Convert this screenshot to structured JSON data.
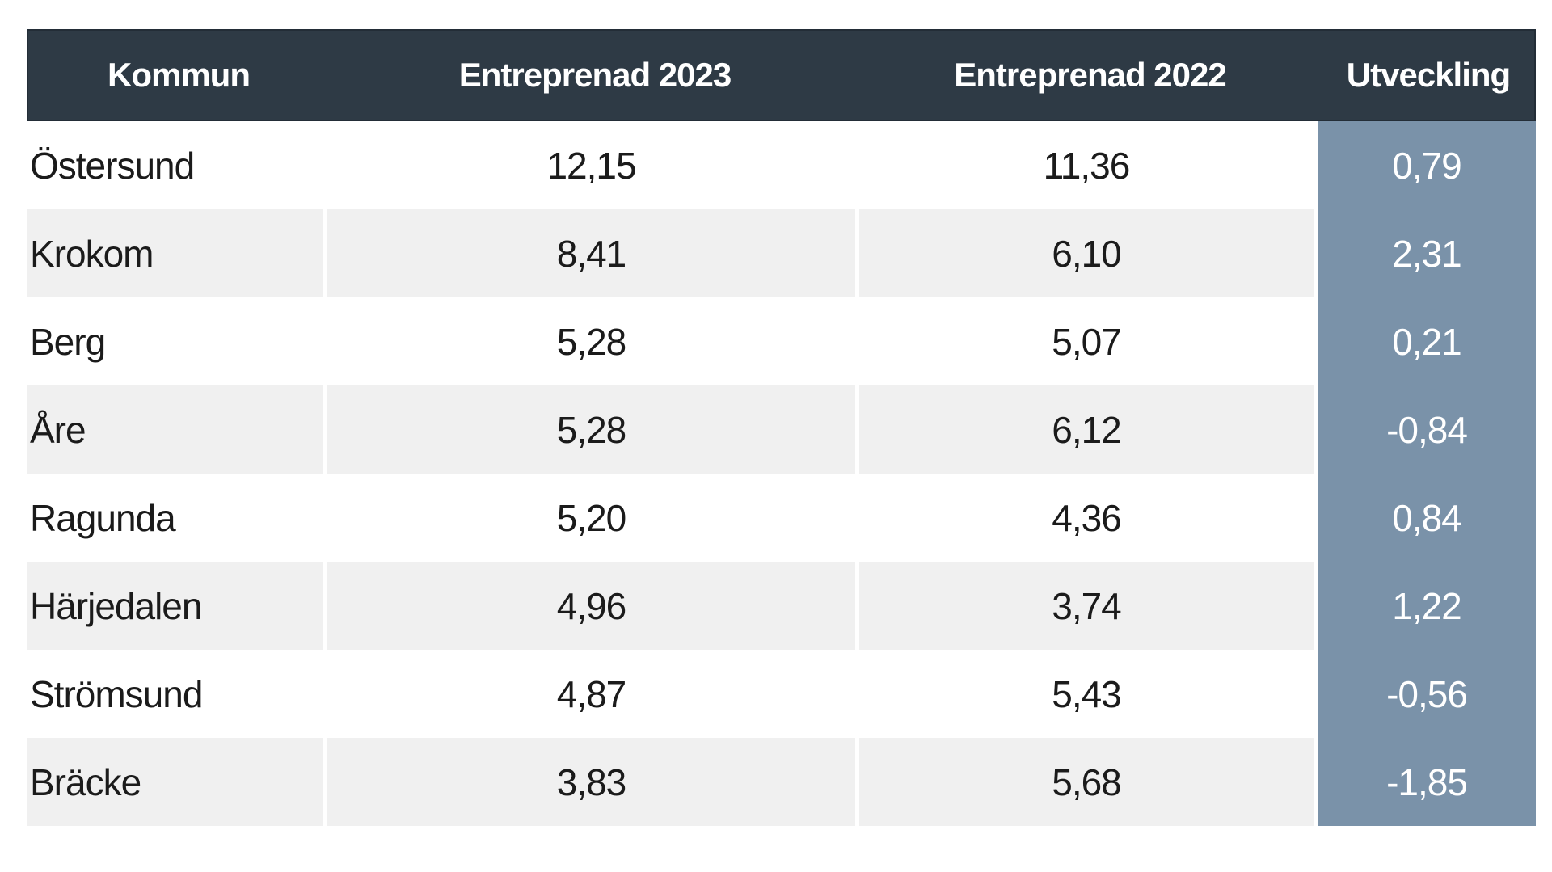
{
  "table": {
    "columns": [
      "Kommun",
      "Entreprenad 2023",
      "Entreprenad 2022",
      "Utveckling"
    ],
    "rows": [
      {
        "kommun": "Östersund",
        "e2023": "12,15",
        "e2022": "11,36",
        "utveckling": "0,79"
      },
      {
        "kommun": "Krokom",
        "e2023": "8,41",
        "e2022": "6,10",
        "utveckling": "2,31"
      },
      {
        "kommun": "Berg",
        "e2023": "5,28",
        "e2022": "5,07",
        "utveckling": "0,21"
      },
      {
        "kommun": "Åre",
        "e2023": "5,28",
        "e2022": "6,12",
        "utveckling": "-0,84"
      },
      {
        "kommun": "Ragunda",
        "e2023": "5,20",
        "e2022": "4,36",
        "utveckling": "0,84"
      },
      {
        "kommun": "Härjedalen",
        "e2023": "4,96",
        "e2022": "3,74",
        "utveckling": "1,22"
      },
      {
        "kommun": "Strömsund",
        "e2023": "4,87",
        "e2022": "5,43",
        "utveckling": "-0,56"
      },
      {
        "kommun": "Bräcke",
        "e2023": "3,83",
        "e2022": "5,68",
        "utveckling": "-1,85"
      }
    ]
  },
  "colors": {
    "header_bg": "#2e3a45",
    "header_text": "#ffffff",
    "header_border": "#232d37",
    "utveckling_bg": "#7a92a9",
    "utveckling_text": "#ffffff",
    "stripe_bg": "#f0f0f0",
    "row_bg": "#ffffff",
    "body_text": "#1b1b1b",
    "divider": "#ffffff"
  },
  "chart_data": {
    "type": "table",
    "title": "",
    "columns": [
      "Kommun",
      "Entreprenad 2023",
      "Entreprenad 2022",
      "Utveckling"
    ],
    "rows": [
      [
        "Östersund",
        12.15,
        11.36,
        0.79
      ],
      [
        "Krokom",
        8.41,
        6.1,
        2.31
      ],
      [
        "Berg",
        5.28,
        5.07,
        0.21
      ],
      [
        "Åre",
        5.28,
        6.12,
        -0.84
      ],
      [
        "Ragunda",
        5.2,
        4.36,
        0.84
      ],
      [
        "Härjedalen",
        4.96,
        3.74,
        1.22
      ],
      [
        "Strömsund",
        4.87,
        5.43,
        -0.56
      ],
      [
        "Bräcke",
        3.83,
        5.68,
        -1.85
      ]
    ],
    "layout": {
      "striped_rows": true,
      "accent_last_column": true,
      "number_format": "decimal-comma (sv-SE)"
    }
  }
}
